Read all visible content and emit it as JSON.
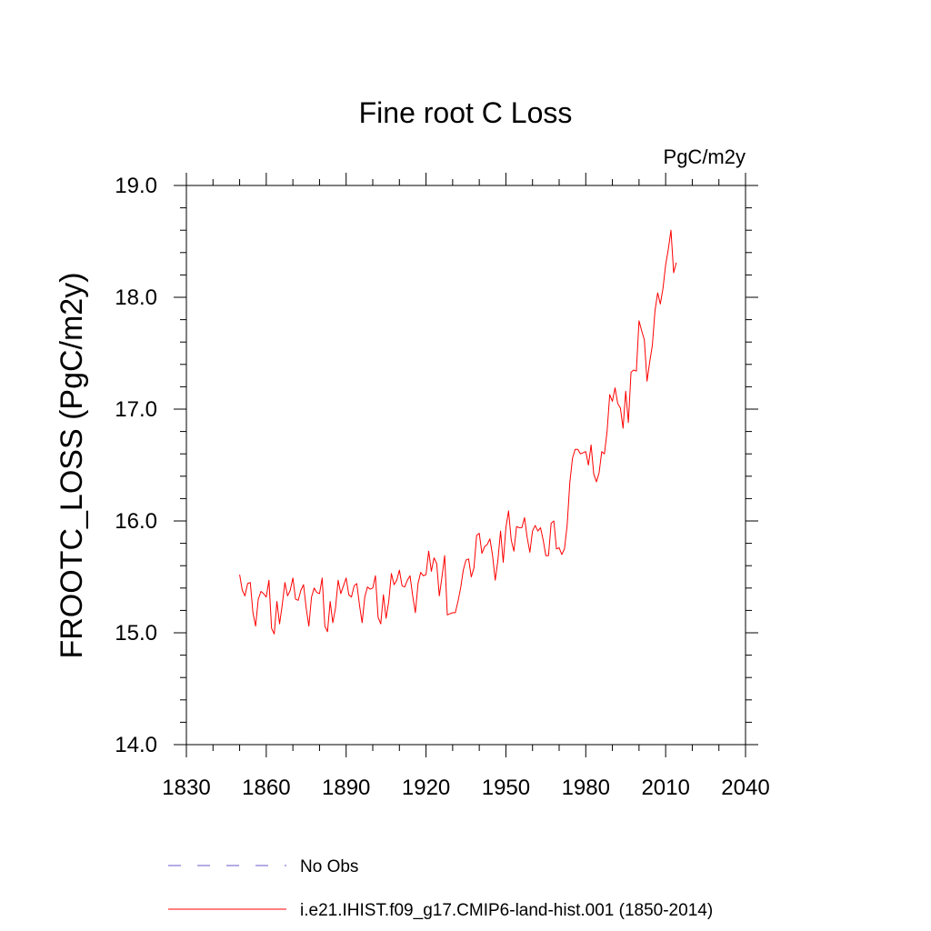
{
  "chart_data": {
    "type": "line",
    "title": "Fine root C Loss",
    "units_label": "PgC/m2y",
    "ylabel": "FROOTC_LOSS  (PgC/m2y)",
    "xlabel": "",
    "xlim": [
      1830,
      2040
    ],
    "ylim": [
      14.0,
      19.0
    ],
    "xticks": [
      1830,
      1860,
      1890,
      1920,
      1950,
      1980,
      2010,
      2040
    ],
    "xtick_labels": [
      "1830",
      "1860",
      "1890",
      "1920",
      "1950",
      "1980",
      "2010",
      "2040"
    ],
    "yticks": [
      14.0,
      15.0,
      16.0,
      17.0,
      18.0,
      19.0
    ],
    "ytick_labels": [
      "14.0",
      "15.0",
      "16.0",
      "17.0",
      "18.0",
      "19.0"
    ],
    "grid": false,
    "legend_position": "bottom",
    "legend": [
      {
        "label": "No Obs",
        "color": "#6a5acd",
        "style": "dashed"
      },
      {
        "label": "i.e21.IHIST.f09_g17.CMIP6-land-hist.001 (1850-2014)",
        "color": "#ff0000",
        "style": "solid"
      }
    ],
    "series": [
      {
        "name": "i.e21.IHIST.f09_g17.CMIP6-land-hist.001 (1850-2014)",
        "color": "#ff0000",
        "x_start": 1850,
        "x_step": 1,
        "values": [
          15.52,
          15.38,
          15.33,
          15.44,
          15.45,
          15.18,
          15.06,
          15.3,
          15.37,
          15.35,
          15.32,
          15.47,
          15.04,
          14.99,
          15.28,
          15.08,
          15.25,
          15.45,
          15.33,
          15.38,
          15.49,
          15.3,
          15.29,
          15.38,
          15.43,
          15.22,
          15.06,
          15.32,
          15.4,
          15.36,
          15.35,
          15.49,
          15.06,
          15.01,
          15.28,
          15.09,
          15.22,
          15.47,
          15.35,
          15.42,
          15.49,
          15.34,
          15.32,
          15.42,
          15.44,
          15.25,
          15.09,
          15.32,
          15.41,
          15.39,
          15.4,
          15.51,
          15.14,
          15.08,
          15.34,
          15.13,
          15.28,
          15.53,
          15.43,
          15.47,
          15.56,
          15.42,
          15.41,
          15.47,
          15.51,
          15.33,
          15.18,
          15.44,
          15.54,
          15.51,
          15.52,
          15.73,
          15.55,
          15.67,
          15.62,
          15.33,
          15.5,
          15.69,
          15.16,
          15.17,
          15.18,
          15.18,
          15.28,
          15.4,
          15.56,
          15.65,
          15.66,
          15.5,
          15.58,
          15.87,
          15.89,
          15.71,
          15.77,
          15.79,
          15.84,
          15.69,
          15.47,
          15.65,
          15.91,
          15.63,
          15.94,
          16.09,
          15.83,
          15.73,
          15.95,
          15.94,
          15.94,
          16.03,
          15.85,
          15.72,
          15.91,
          15.96,
          15.91,
          15.94,
          15.83,
          15.69,
          15.69,
          15.98,
          16.0,
          15.75,
          15.76,
          15.7,
          15.75,
          15.96,
          16.34,
          16.56,
          16.64,
          16.64,
          16.6,
          16.61,
          16.62,
          16.5,
          16.68,
          16.42,
          16.35,
          16.43,
          16.62,
          16.6,
          16.8,
          17.13,
          17.07,
          17.19,
          17.05,
          17.01,
          16.83,
          17.16,
          16.88,
          17.33,
          17.35,
          17.34,
          17.79,
          17.7,
          17.62,
          17.25,
          17.42,
          17.57,
          17.88,
          18.04,
          17.94,
          18.08,
          18.29,
          18.43,
          18.6,
          18.22,
          18.31
        ]
      }
    ]
  }
}
